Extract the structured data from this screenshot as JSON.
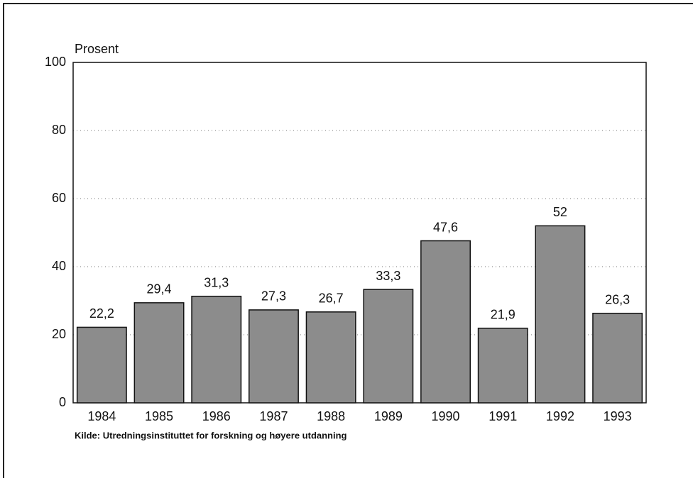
{
  "chart_data": {
    "type": "bar",
    "y_label": "Prosent",
    "source": "Kilde: Utredningsinstituttet for forskning og høyere utdanning",
    "categories": [
      "1984",
      "1985",
      "1986",
      "1987",
      "1988",
      "1989",
      "1990",
      "1991",
      "1992",
      "1993"
    ],
    "values": [
      22.2,
      29.4,
      31.3,
      27.3,
      26.7,
      33.3,
      47.6,
      21.9,
      52,
      26.3
    ],
    "value_labels": [
      "22,2",
      "29,4",
      "31,3",
      "27,3",
      "26,7",
      "33,3",
      "47,6",
      "21,9",
      "52",
      "26,3"
    ],
    "color": "#8c8c8c",
    "ylim": [
      0,
      100
    ],
    "yticks": [
      0,
      20,
      40,
      60,
      80,
      100
    ],
    "grid": true
  }
}
